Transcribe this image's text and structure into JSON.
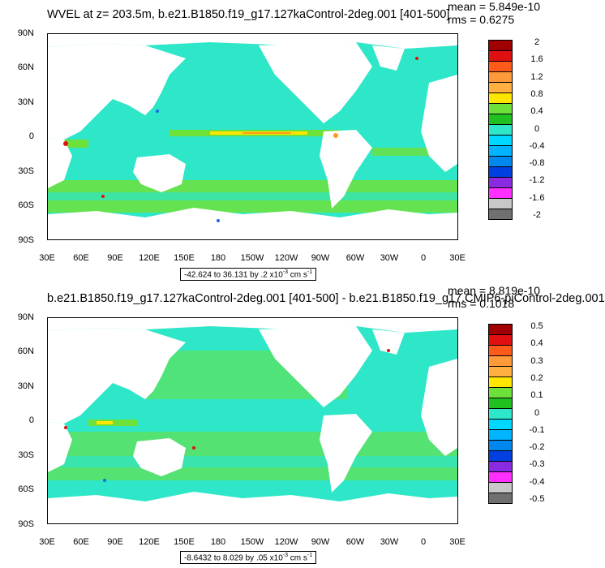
{
  "panels": [
    {
      "title": "WVEL at z= 203.5m, b.e21.B1850.f19_g17.127kaControl-2deg.001 [401-500]",
      "mean": "mean = 5.849e-10",
      "rms": "rms = 0.6275",
      "range_text": "-42.624 to 36.131 by .2 x10",
      "range_exp": "-3",
      "range_unit": " cm s",
      "range_unit_exp": "-1",
      "colorbar_labels": [
        "2",
        "1.6",
        "1.2",
        "0.8",
        "0.4",
        "0",
        "-0.4",
        "-0.8",
        "-1.2",
        "-1.6",
        "-2"
      ]
    },
    {
      "title": "b.e21.B1850.f19_g17.127kaControl-2deg.001 [401-500] - b.e21.B1850.f19_g17.CMIP6-piControl-2deg.001",
      "mean": "mean = 8.819e-10",
      "rms": "rms = 0.1018",
      "range_text": "-8.6432 to 8.029 by .05 x10",
      "range_exp": "-3",
      "range_unit": " cm s",
      "range_unit_exp": "-1",
      "colorbar_labels": [
        "0.5",
        "0.4",
        "0.3",
        "0.2",
        "0.1",
        "0",
        "-0.1",
        "-0.2",
        "-0.3",
        "-0.4",
        "-0.5"
      ]
    }
  ],
  "lat_labels": [
    "90N",
    "60N",
    "30N",
    "0",
    "30S",
    "60S",
    "90S"
  ],
  "lon_labels": [
    "30E",
    "60E",
    "90E",
    "120E",
    "150E",
    "180",
    "150W",
    "120W",
    "90W",
    "60W",
    "30W",
    "0",
    "30E"
  ],
  "colors": {
    "ocean": "#2ee6c8",
    "land": "#ffffff",
    "green": "#6ee03a",
    "yellow": "#ffe600",
    "orange": "#ff9a1a",
    "red": "#e01010",
    "blue": "#1a6be0"
  },
  "colorbar_colors": [
    "#a00000",
    "#e01010",
    "#ff5a1a",
    "#ff9a3a",
    "#ffb040",
    "#ffe600",
    "#6ee03a",
    "#20c020",
    "#2ee6c8",
    "#00d8ff",
    "#00b4ff",
    "#0088ee",
    "#0040e0",
    "#8a2be2",
    "#ff30ff",
    "#c8c8c8",
    "#707070"
  ]
}
